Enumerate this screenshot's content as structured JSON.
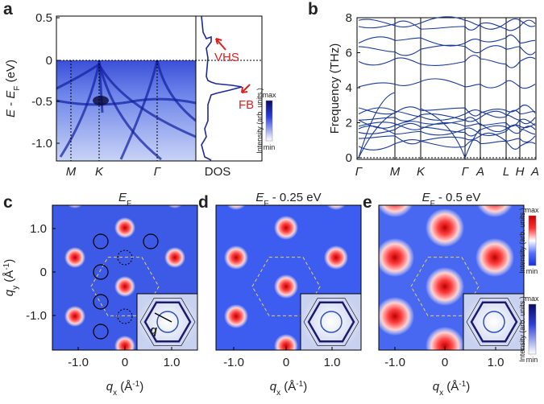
{
  "panels": {
    "a": {
      "label": "a",
      "y_title": [
        "E",
        " - ",
        "E",
        "F",
        " (eV)"
      ],
      "yticks": [
        "0.5",
        "0",
        "-0.5",
        "-1.0"
      ],
      "xlabels": [
        "M",
        "K",
        "Γ",
        "DOS"
      ],
      "annotations": [
        "VHS",
        "FB"
      ],
      "colorbar": {
        "max": "max",
        "min": "min",
        "title": "Intensity (arb. units.)"
      }
    },
    "b": {
      "label": "b",
      "y_title": "Frequency (THz)",
      "yticks": [
        "0",
        "2",
        "4",
        "6",
        "8"
      ],
      "xlabels": [
        "Γ",
        "M",
        "K",
        "Γ",
        "A",
        "L",
        "H",
        "A"
      ]
    },
    "c": {
      "label": "c",
      "title": [
        "E",
        "F"
      ],
      "yticks": [
        "1.0",
        "0",
        "-1.0"
      ],
      "xticks": [
        "-1.0",
        "0",
        "1.0"
      ],
      "x_title": [
        "q",
        "x",
        " (Å",
        "-1",
        ")"
      ],
      "y_title": [
        "q",
        "y",
        " (Å",
        "-1",
        ")"
      ],
      "inset_label": "q"
    },
    "d": {
      "label": "d",
      "title": [
        "E",
        "F",
        " - 0.25 eV"
      ],
      "xticks": [
        "-1.0",
        "0",
        "1.0"
      ],
      "x_title": [
        "q",
        "x",
        " (Å",
        "-1",
        ")"
      ]
    },
    "e": {
      "label": "e",
      "title": [
        "E",
        "F",
        " - 0.5 eV"
      ],
      "xticks": [
        "-1.0",
        "0",
        "1.0"
      ],
      "x_title": [
        "q",
        "x",
        " (Å",
        "-1",
        ")"
      ]
    },
    "colorbars": [
      {
        "max": "max",
        "min": "min",
        "title": "Intensity (arb. units.)"
      },
      {
        "max": "max",
        "min": "min",
        "title": "Intensity (arb. units.)"
      }
    ]
  }
}
